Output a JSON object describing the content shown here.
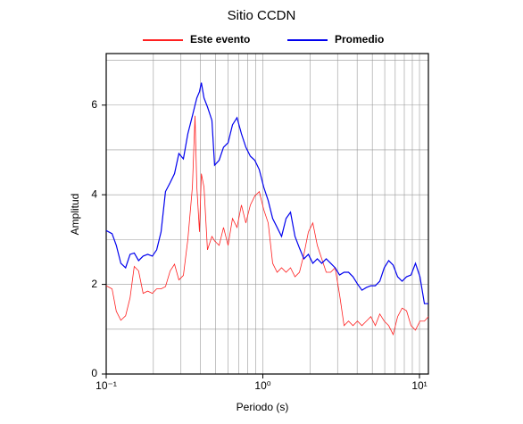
{
  "chart_data": {
    "type": "line",
    "title": "Sitio CCDN",
    "x_label": "Periodo (s)",
    "y_label": "Amplitud",
    "log_x": true,
    "grid": true,
    "legend_position": "top",
    "xlim": [
      0.1,
      11.4
    ],
    "ylim": [
      0,
      7.15
    ],
    "xticks": [
      {
        "value": 0.1,
        "label": "10⁻¹"
      },
      {
        "value": 1,
        "label": "10⁰"
      },
      {
        "value": 10,
        "label": "10¹"
      }
    ],
    "xminor": [
      0.2,
      0.3,
      0.4,
      0.5,
      0.6,
      0.7,
      0.8,
      0.9,
      2,
      3,
      4,
      5,
      6,
      7,
      8,
      9
    ],
    "yticks": [
      0,
      2,
      4,
      6
    ],
    "yminor": [
      1,
      3,
      5,
      7
    ],
    "x": [
      0.1,
      0.109,
      0.116,
      0.124,
      0.133,
      0.142,
      0.151,
      0.161,
      0.172,
      0.184,
      0.197,
      0.21,
      0.224,
      0.239,
      0.256,
      0.273,
      0.291,
      0.311,
      0.332,
      0.355,
      0.369,
      0.379,
      0.394,
      0.405,
      0.421,
      0.443,
      0.473,
      0.492,
      0.526,
      0.561,
      0.6,
      0.64,
      0.684,
      0.73,
      0.779,
      0.832,
      0.888,
      0.949,
      1.013,
      1.082,
      1.155,
      1.234,
      1.317,
      1.407,
      1.502,
      1.604,
      1.713,
      1.829,
      1.953,
      2.085,
      2.227,
      2.378,
      2.539,
      2.71,
      2.894,
      3.09,
      3.3,
      3.524,
      3.763,
      4.018,
      4.291,
      4.581,
      4.892,
      5.224,
      5.578,
      5.956,
      6.36,
      6.791,
      7.252,
      7.744,
      8.269,
      8.83,
      9.428,
      10.07,
      10.75,
      11.4
    ],
    "series": [
      {
        "name": "Este evento",
        "color": "#ff2020",
        "values": [
          1.97,
          1.9,
          1.4,
          1.2,
          1.3,
          1.7,
          2.4,
          2.3,
          1.8,
          1.85,
          1.8,
          1.9,
          1.9,
          1.95,
          2.3,
          2.45,
          2.1,
          2.2,
          3.0,
          4.17,
          5.76,
          4.17,
          3.17,
          4.47,
          4.17,
          2.77,
          3.07,
          2.97,
          2.87,
          3.27,
          2.87,
          3.47,
          3.27,
          3.77,
          3.37,
          3.77,
          3.97,
          4.07,
          3.67,
          3.37,
          2.47,
          2.27,
          2.37,
          2.27,
          2.37,
          2.17,
          2.27,
          2.67,
          3.17,
          3.37,
          2.87,
          2.57,
          2.27,
          2.27,
          2.37,
          1.77,
          1.08,
          1.18,
          1.08,
          1.18,
          1.08,
          1.18,
          1.28,
          1.08,
          1.34,
          1.18,
          1.08,
          0.88,
          1.28,
          1.47,
          1.41,
          1.08,
          0.98,
          1.18,
          1.18,
          1.28
        ]
      },
      {
        "name": "Promedio",
        "color": "#0000ee",
        "values": [
          3.2,
          3.13,
          2.87,
          2.47,
          2.37,
          2.67,
          2.7,
          2.53,
          2.63,
          2.67,
          2.63,
          2.77,
          3.17,
          4.07,
          4.27,
          4.47,
          4.92,
          4.8,
          5.36,
          5.76,
          6.0,
          6.16,
          6.3,
          6.5,
          6.16,
          5.96,
          5.66,
          4.66,
          4.77,
          5.06,
          5.16,
          5.56,
          5.72,
          5.36,
          5.06,
          4.86,
          4.77,
          4.56,
          4.17,
          3.87,
          3.47,
          3.27,
          3.07,
          3.47,
          3.61,
          3.07,
          2.81,
          2.57,
          2.67,
          2.47,
          2.57,
          2.47,
          2.57,
          2.47,
          2.37,
          2.21,
          2.27,
          2.27,
          2.17,
          2.01,
          1.87,
          1.93,
          1.97,
          1.97,
          2.07,
          2.37,
          2.53,
          2.43,
          2.17,
          2.07,
          2.17,
          2.21,
          2.47,
          2.17,
          1.57,
          1.57
        ]
      }
    ]
  }
}
